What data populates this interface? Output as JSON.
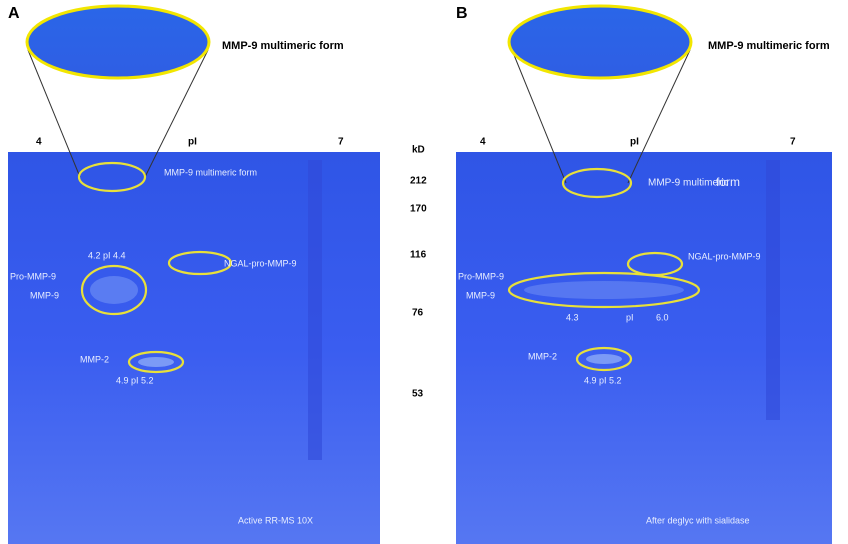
{
  "panels": [
    {
      "label": "A",
      "zoom_label": "MMP-9 multimeric form",
      "axis": {
        "left": "4",
        "mid": "pI",
        "right": "7"
      },
      "kd": {
        "title": "kD",
        "markers": [
          "212",
          "170",
          "116",
          "76",
          "53"
        ]
      },
      "annotations": {
        "multimer": "MMP-9 multimeric form",
        "range1": "4.2  pI  4.4",
        "ngal": "NGAL-pro-MMP-9",
        "pro": "Pro-MMP-9",
        "mmp9": "MMP-9",
        "mmp2": "MMP-2",
        "range2": "4.9  pI  5.2"
      },
      "caption": "Active RR-MS 10X"
    },
    {
      "label": "B",
      "zoom_label": "MMP-9 multimeric form",
      "axis": {
        "left": "4",
        "mid": "pI",
        "right": "7"
      },
      "annotations": {
        "multimer": "MMP-9 multimeric",
        "multimer_end": "form",
        "ngal": "NGAL-pro-MMP-9",
        "pro": "Pro-MMP-9",
        "mmp9": "MMP-9",
        "range1_lo": "4.3",
        "range1_mid": "pI",
        "range1_hi": "6.0",
        "mmp2": "MMP-2",
        "range2": "4.9  pI  5.2"
      },
      "caption": "After deglyc with sialidase"
    }
  ]
}
